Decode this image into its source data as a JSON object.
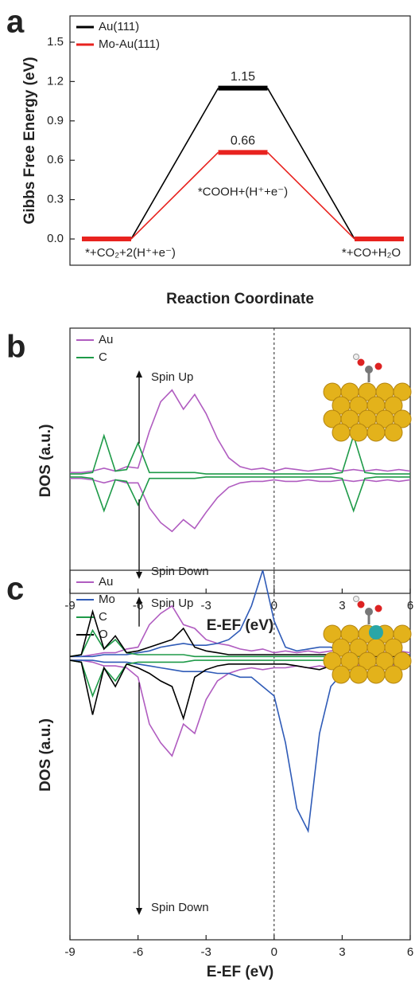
{
  "chart_data": [
    {
      "type": "energy_diagram",
      "panel": "a",
      "y_label": "Gibbs Free Energy (eV)",
      "x_label": "Reaction Coordinate",
      "categories": [
        "*+CO₂+2(H⁺+e⁻)",
        "*COOH+(H⁺+e⁻)",
        "*+CO+H₂O"
      ],
      "series": [
        {
          "name": "Au(111)",
          "color": "#000000",
          "values": [
            0,
            1.15,
            0
          ],
          "value_labels": [
            null,
            "1.15",
            null
          ]
        },
        {
          "name": "Mo-Au(111)",
          "color": "#e8231f",
          "values": [
            0,
            0.66,
            0
          ],
          "value_labels": [
            null,
            "0.66",
            null
          ]
        }
      ],
      "ylim": [
        -0.2,
        1.7
      ],
      "yticks": [
        {
          "value": 0,
          "label": "0.0"
        },
        0.3,
        0.6,
        0.9,
        1.2,
        1.5
      ],
      "legend": "upper-left"
    },
    {
      "type": "spin_dos",
      "panel": "b",
      "y_label": "DOS (a.u.)",
      "x_label": "E-EF (eV)",
      "annotations": [
        "Spin Up",
        "Spin Down"
      ],
      "x": [
        -9,
        -8.5,
        -8,
        -7.5,
        -7,
        -6.5,
        -6,
        -5.5,
        -5,
        -4.5,
        -4,
        -3.5,
        -3,
        -2.5,
        -2,
        -1.5,
        -1,
        -0.5,
        0,
        0.5,
        1,
        1.5,
        2,
        2.5,
        3,
        3.5,
        4,
        4.5,
        5,
        5.5,
        6
      ],
      "series": [
        {
          "name": "Au",
          "color": "#b05cc0",
          "spin_up": [
            0.02,
            0.02,
            0.03,
            0.05,
            0.03,
            0.06,
            0.05,
            0.3,
            0.5,
            0.58,
            0.45,
            0.55,
            0.42,
            0.25,
            0.12,
            0.06,
            0.04,
            0.05,
            0.03,
            0.05,
            0.04,
            0.03,
            0.04,
            0.05,
            0.03,
            0.04,
            0.03,
            0.04,
            0.03,
            0.04,
            0.03
          ],
          "spin_down": [
            -0.02,
            -0.02,
            -0.03,
            -0.05,
            -0.03,
            -0.05,
            -0.05,
            -0.22,
            -0.32,
            -0.38,
            -0.3,
            -0.36,
            -0.25,
            -0.15,
            -0.08,
            -0.05,
            -0.04,
            -0.04,
            -0.03,
            -0.04,
            -0.04,
            -0.03,
            -0.04,
            -0.04,
            -0.03,
            -0.04,
            -0.03,
            -0.04,
            -0.03,
            -0.04,
            -0.03
          ]
        },
        {
          "name": "C",
          "color": "#1e9a48",
          "spin_up": [
            0.01,
            0.01,
            0.02,
            0.27,
            0.03,
            0.04,
            0.22,
            0.02,
            0.02,
            0.02,
            0.02,
            0.02,
            0.01,
            0.01,
            0.01,
            0.01,
            0.01,
            0.01,
            0.01,
            0.01,
            0.01,
            0.01,
            0.01,
            0.01,
            0.02,
            0.27,
            0.02,
            0.01,
            0.01,
            0.01,
            0.01
          ],
          "spin_down": [
            -0.01,
            -0.01,
            -0.02,
            -0.24,
            -0.03,
            -0.04,
            -0.2,
            -0.02,
            -0.02,
            -0.02,
            -0.02,
            -0.02,
            -0.01,
            -0.01,
            -0.01,
            -0.01,
            -0.01,
            -0.01,
            -0.01,
            -0.01,
            -0.01,
            -0.01,
            -0.01,
            -0.01,
            -0.02,
            -0.24,
            -0.02,
            -0.01,
            -0.01,
            -0.01,
            -0.01
          ]
        }
      ],
      "xlim": [
        -9,
        6
      ],
      "xticks": [
        -9,
        -6,
        -3,
        0,
        3,
        6
      ],
      "ylim": [
        -0.8,
        1
      ],
      "vline": 0,
      "legend": "upper-left"
    },
    {
      "type": "spin_dos",
      "panel": "c",
      "y_label": "DOS (a.u.)",
      "x_label": "E-EF (eV)",
      "annotations": [
        "Spin Up",
        "Spin Down"
      ],
      "x": [
        -9,
        -8.5,
        -8,
        -7.5,
        -7,
        -6.5,
        -6,
        -5.5,
        -5,
        -4.5,
        -4,
        -3.5,
        -3,
        -2.5,
        -2,
        -1.5,
        -1,
        -0.5,
        0,
        0.5,
        1,
        1.5,
        2,
        2.5,
        3,
        3.5,
        4,
        4.5,
        5,
        5.5,
        6
      ],
      "series": [
        {
          "name": "Au",
          "color": "#b05cc0",
          "spin_up": [
            0.01,
            0.01,
            0.02,
            0.03,
            0.03,
            0.05,
            0.06,
            0.18,
            0.24,
            0.28,
            0.18,
            0.16,
            0.1,
            0.08,
            0.07,
            0.05,
            0.04,
            0.05,
            0.03,
            0.04,
            0.03,
            0.04,
            0.03,
            0.04,
            0.05,
            0.04,
            0.03,
            0.04,
            0.03,
            0.04,
            0.03
          ],
          "spin_down": [
            -0.01,
            -0.01,
            -0.02,
            -0.04,
            -0.04,
            -0.05,
            -0.1,
            -0.35,
            -0.45,
            -0.52,
            -0.35,
            -0.4,
            -0.22,
            -0.12,
            -0.08,
            -0.06,
            -0.05,
            -0.06,
            -0.05,
            -0.05,
            -0.04,
            -0.05,
            -0.04,
            -0.05,
            -0.06,
            -0.04,
            -0.03,
            -0.04,
            -0.03,
            -0.04,
            -0.03
          ]
        },
        {
          "name": "Mo",
          "color": "#2f5bb7",
          "spin_up": [
            0.01,
            0.01,
            0.01,
            0.02,
            0.02,
            0.02,
            0.03,
            0.04,
            0.06,
            0.07,
            0.08,
            0.07,
            0.07,
            0.08,
            0.1,
            0.15,
            0.28,
            0.47,
            0.2,
            0.06,
            0.04,
            0.05,
            0.06,
            0.06,
            0.03,
            0.02,
            0.02,
            0.02,
            0.02,
            0.02,
            0.02
          ],
          "spin_down": [
            -0.01,
            -0.01,
            -0.01,
            -0.02,
            -0.02,
            -0.02,
            -0.03,
            -0.04,
            -0.05,
            -0.06,
            -0.07,
            -0.07,
            -0.07,
            -0.08,
            -0.08,
            -0.1,
            -0.1,
            -0.15,
            -0.2,
            -0.45,
            -0.8,
            -0.92,
            -0.4,
            -0.15,
            -0.08,
            -0.05,
            -0.04,
            -0.04,
            -0.03,
            -0.03,
            -0.03
          ]
        },
        {
          "name": "C",
          "color": "#1e9a48",
          "spin_up": [
            0.01,
            0.02,
            0.15,
            0.05,
            0.1,
            0.03,
            0.02,
            0.02,
            0.02,
            0.02,
            0.02,
            0.01,
            0.01,
            0.01,
            0.01,
            0.01,
            0.01,
            0.01,
            0.01,
            0.01,
            0.01,
            0.01,
            0.01,
            0.01,
            0.06,
            0.01,
            0.01,
            0.01,
            0.01,
            0.01,
            0.01
          ],
          "spin_down": [
            -0.01,
            -0.02,
            -0.2,
            -0.05,
            -0.12,
            -0.03,
            -0.02,
            -0.02,
            -0.02,
            -0.02,
            -0.02,
            -0.01,
            -0.01,
            -0.01,
            -0.01,
            -0.01,
            -0.01,
            -0.01,
            -0.01,
            -0.01,
            -0.01,
            -0.01,
            -0.01,
            -0.01,
            -0.06,
            -0.01,
            -0.01,
            -0.01,
            -0.01,
            -0.01,
            -0.01
          ]
        },
        {
          "name": "O",
          "color": "#000000",
          "spin_up": [
            0.01,
            0.02,
            0.25,
            0.05,
            0.12,
            0.03,
            0.04,
            0.06,
            0.08,
            0.1,
            0.16,
            0.06,
            0.04,
            0.03,
            0.02,
            0.02,
            0.02,
            0.02,
            0.02,
            0.02,
            0.02,
            0.02,
            0.02,
            0.02,
            0.03,
            0.02,
            0.01,
            0.01,
            0.01,
            0.01,
            0.01
          ],
          "spin_down": [
            -0.01,
            -0.02,
            -0.3,
            -0.05,
            -0.15,
            -0.03,
            -0.05,
            -0.08,
            -0.12,
            -0.15,
            -0.32,
            -0.1,
            -0.06,
            -0.04,
            -0.03,
            -0.03,
            -0.03,
            -0.03,
            -0.03,
            -0.03,
            -0.04,
            -0.05,
            -0.06,
            -0.04,
            -0.05,
            -0.03,
            -0.02,
            -0.02,
            -0.02,
            -0.02,
            -0.02
          ]
        }
      ],
      "xlim": [
        -9,
        6
      ],
      "xticks": [
        -9,
        -6,
        -3,
        0,
        3,
        6
      ],
      "ylim": [
        -1.5,
        0.47
      ],
      "vline": 0,
      "legend": "upper-left"
    }
  ]
}
